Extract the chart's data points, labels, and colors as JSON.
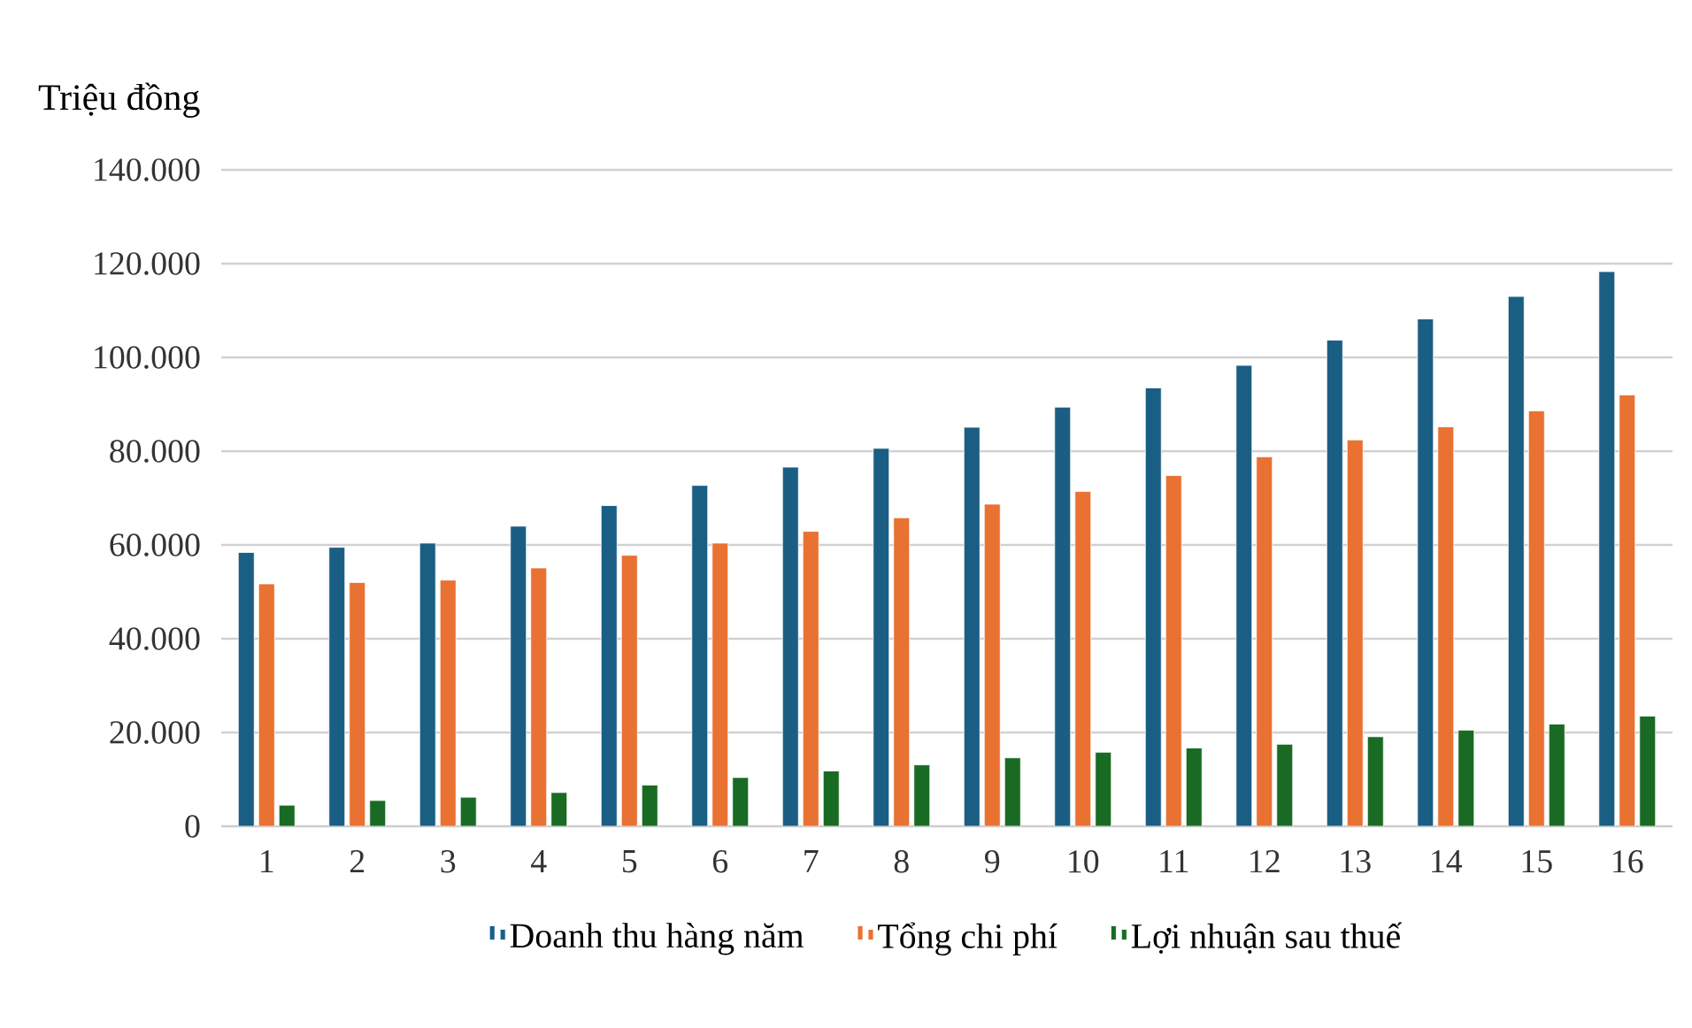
{
  "chart_data": {
    "type": "bar",
    "ylabel": "Triệu đồng",
    "categories": [
      "1",
      "2",
      "3",
      "4",
      "5",
      "6",
      "7",
      "8",
      "9",
      "10",
      "11",
      "12",
      "13",
      "14",
      "15",
      "16"
    ],
    "series": [
      {
        "name": "Doanh thu hàng năm",
        "color": "#1a5e83",
        "values": [
          58400,
          59500,
          60400,
          64000,
          68400,
          72700,
          76600,
          80600,
          85100,
          89400,
          93500,
          98300,
          103700,
          108200,
          113000,
          118300
        ]
      },
      {
        "name": "Tổng chi phí",
        "color": "#e97132",
        "values": [
          51700,
          52000,
          52500,
          55100,
          57800,
          60400,
          62900,
          65800,
          68700,
          71400,
          74800,
          78800,
          82400,
          85200,
          88600,
          92000
        ]
      },
      {
        "name": "Lợi nhuận sau thuế",
        "color": "#196b24",
        "values": [
          4500,
          5500,
          6200,
          7200,
          8800,
          10400,
          11800,
          13100,
          14600,
          15800,
          16700,
          17500,
          19100,
          20500,
          21800,
          23500
        ]
      }
    ],
    "ylim": [
      0,
      140000
    ],
    "yticks": [
      {
        "value": 0,
        "label": "0"
      },
      {
        "value": 20000,
        "label": "20.000"
      },
      {
        "value": 40000,
        "label": "40.000"
      },
      {
        "value": 60000,
        "label": "60.000"
      },
      {
        "value": 80000,
        "label": "80.000"
      },
      {
        "value": 100000,
        "label": "100.000"
      },
      {
        "value": 120000,
        "label": "120.000"
      },
      {
        "value": 140000,
        "label": "140.000"
      }
    ],
    "grid": "y",
    "legend": "bottom"
  }
}
